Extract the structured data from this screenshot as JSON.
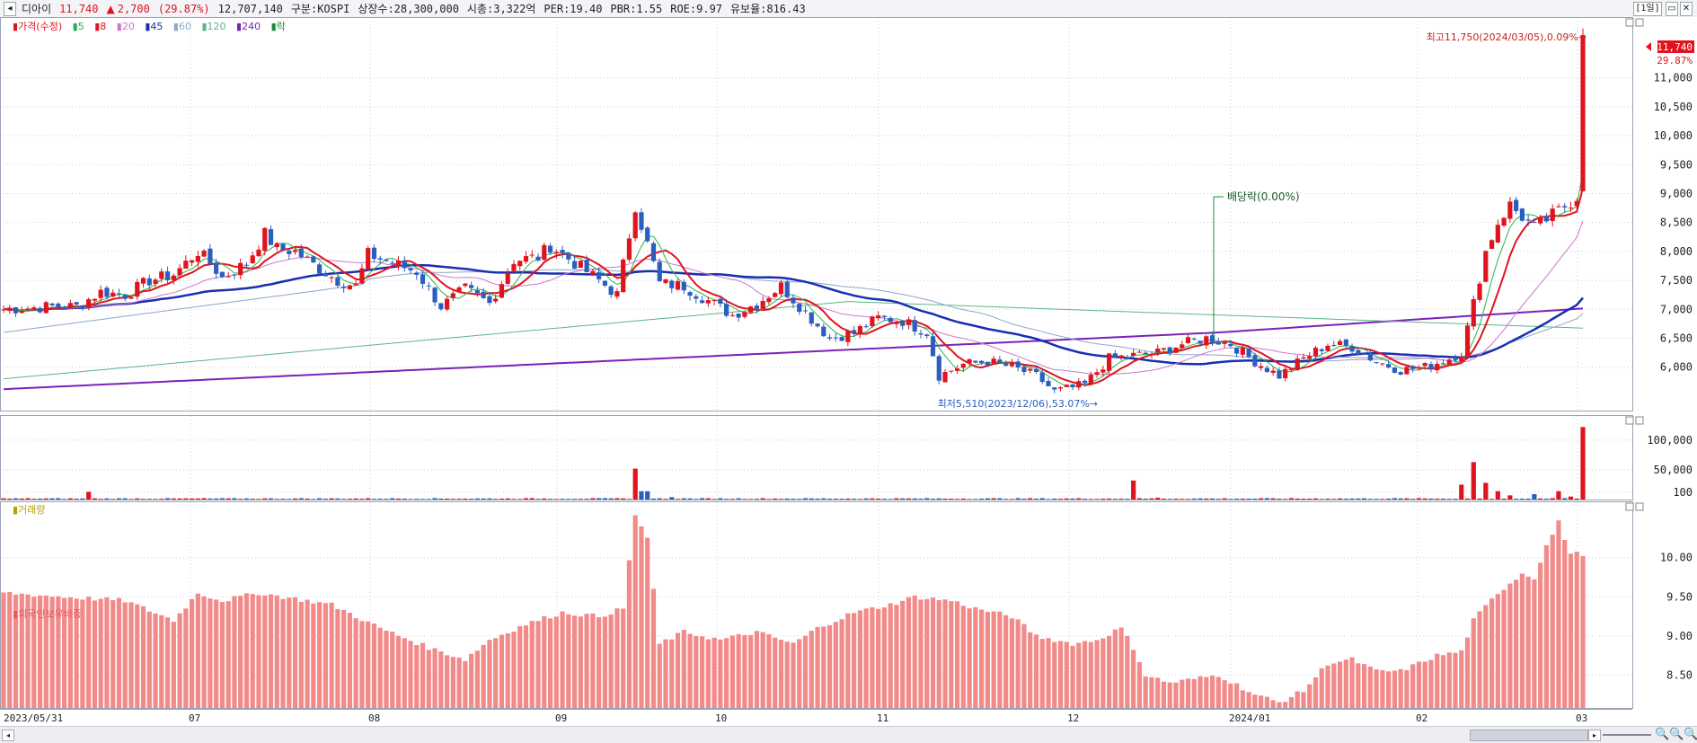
{
  "header": {
    "name": "디아이",
    "price": "11,740",
    "change_arrow": "▲",
    "change": "2,700",
    "change_pct": "(29.87%)",
    "volume": "12,707,140",
    "market": "구분:KOSPI",
    "listed": "상장수:28,300,000",
    "mcap": "시총:3,322억",
    "per": "PER:19.40",
    "pbr": "PBR:1.55",
    "roe": "ROE:9.97",
    "reserve": "유보율:816.43",
    "period_button": "[1일]"
  },
  "legend_price": {
    "title": "가격(수정)",
    "ma5": "5",
    "ma8": "8",
    "ma20": "20",
    "ma45": "45",
    "ma60": "60",
    "ma120": "120",
    "ma240": "240",
    "exdiv": "락"
  },
  "legend_volume": {
    "title": "거래량"
  },
  "legend_foreign": {
    "title": "외국인보유비중"
  },
  "colors": {
    "up": "#e0141e",
    "down": "#2a5fc0",
    "ma5": "#27b34b",
    "ma8": "#e0141e",
    "ma20": "#cc77cc",
    "ma45": "#1a2fb0",
    "ma60": "#8aa8c8",
    "ma120": "#5bb585",
    "ma240": "#7a22b8",
    "foreign": "#f28a8a"
  },
  "annotations": {
    "high": "최고11,750(2024/03/05),0.09%→",
    "low": "최저5,510(2023/12/06),53.07%→",
    "dividend": "배당락(0.00%)",
    "last_price": "11,740",
    "last_pct": "29.87%"
  },
  "chart_data": [
    {
      "type": "candlestick",
      "title": "가격(수정)",
      "x_labels": [
        "2023/05/31",
        "07",
        "08",
        "09",
        "10",
        "11",
        "12",
        "2024/01",
        "02",
        "03"
      ],
      "y_ticks": [
        6000,
        6500,
        7000,
        7500,
        8000,
        8500,
        9000,
        9500,
        10000,
        10500,
        11000
      ],
      "y_tick_labels": [
        "6,000",
        "6,500",
        "7,000",
        "7,500",
        "8,000",
        "8,500",
        "9,000",
        "9,500",
        "10,000",
        "10,500",
        "11,000"
      ],
      "ylim": [
        5250,
        12050
      ],
      "anchors": [
        [
          0,
          7000
        ],
        [
          8,
          7050
        ],
        [
          12,
          7050
        ],
        [
          16,
          7300
        ],
        [
          20,
          7250
        ],
        [
          24,
          7500
        ],
        [
          28,
          7600
        ],
        [
          32,
          8000
        ],
        [
          34,
          7800
        ],
        [
          36,
          7550
        ],
        [
          40,
          7800
        ],
        [
          43,
          8300
        ],
        [
          45,
          8050
        ],
        [
          48,
          8000
        ],
        [
          52,
          7700
        ],
        [
          55,
          7500
        ],
        [
          58,
          7400
        ],
        [
          60,
          7950
        ],
        [
          64,
          7800
        ],
        [
          68,
          7650
        ],
        [
          72,
          7050
        ],
        [
          76,
          7350
        ],
        [
          80,
          7100
        ],
        [
          84,
          7850
        ],
        [
          88,
          7900
        ],
        [
          90,
          8100
        ],
        [
          94,
          7800
        ],
        [
          98,
          7500
        ],
        [
          101,
          7250
        ],
        [
          104,
          8800
        ],
        [
          108,
          7450
        ],
        [
          112,
          7400
        ],
        [
          116,
          7150
        ],
        [
          120,
          6900
        ],
        [
          124,
          7100
        ],
        [
          128,
          7400
        ],
        [
          132,
          6950
        ],
        [
          136,
          6500
        ],
        [
          140,
          6600
        ],
        [
          144,
          6850
        ],
        [
          148,
          6800
        ],
        [
          152,
          6600
        ],
        [
          154,
          5850
        ],
        [
          158,
          6050
        ],
        [
          162,
          6100
        ],
        [
          166,
          6000
        ],
        [
          170,
          5850
        ],
        [
          173,
          5580
        ],
        [
          176,
          5650
        ],
        [
          178,
          5700
        ],
        [
          182,
          6150
        ],
        [
          186,
          6200
        ],
        [
          190,
          6250
        ],
        [
          194,
          6400
        ],
        [
          198,
          6500
        ],
        [
          202,
          6400
        ],
        [
          206,
          6100
        ],
        [
          210,
          5850
        ],
        [
          214,
          6150
        ],
        [
          218,
          6400
        ],
        [
          222,
          6350
        ],
        [
          226,
          6100
        ],
        [
          230,
          5950
        ],
        [
          234,
          6000
        ],
        [
          238,
          6150
        ],
        [
          240,
          6250
        ],
        [
          242,
          7100
        ],
        [
          244,
          8000
        ],
        [
          246,
          8500
        ],
        [
          248,
          8800
        ],
        [
          252,
          8400
        ],
        [
          256,
          8700
        ],
        [
          259,
          8950
        ],
        [
          260,
          11740
        ]
      ],
      "annotations": [
        "최고11,750(2024/03/05),0.09%",
        "최저5,510(2023/12/06),53.07%",
        "배당락(0.00%)"
      ]
    },
    {
      "type": "bar",
      "title": "거래량",
      "y_tick_labels": [
        "100,000",
        "50,000",
        "100"
      ],
      "y_ticks": [
        100000,
        50000,
        100
      ],
      "ylim": [
        0,
        130000
      ],
      "spikes": [
        [
          14,
          13000
        ],
        [
          104,
          52000
        ],
        [
          105,
          14000
        ],
        [
          106,
          14000
        ],
        [
          110,
          4000
        ],
        [
          186,
          32000
        ],
        [
          190,
          3000
        ],
        [
          240,
          25000
        ],
        [
          242,
          63000
        ],
        [
          244,
          28000
        ],
        [
          246,
          14000
        ],
        [
          248,
          7000
        ],
        [
          252,
          9000
        ],
        [
          256,
          14000
        ],
        [
          258,
          5000
        ],
        [
          260,
          122000
        ]
      ],
      "base": 1500
    },
    {
      "type": "bar",
      "title": "외국인보유비중",
      "y_tick_labels": [
        "10.00",
        "9.50",
        "9.00",
        "8.50"
      ],
      "y_ticks": [
        10.0,
        9.5,
        9.0,
        8.5
      ],
      "ylim": [
        8.08,
        10.72
      ],
      "anchors": [
        [
          0,
          9.55
        ],
        [
          10,
          9.5
        ],
        [
          20,
          9.45
        ],
        [
          28,
          9.2
        ],
        [
          32,
          9.55
        ],
        [
          36,
          9.45
        ],
        [
          42,
          9.55
        ],
        [
          46,
          9.5
        ],
        [
          54,
          9.4
        ],
        [
          58,
          9.25
        ],
        [
          62,
          9.1
        ],
        [
          70,
          8.85
        ],
        [
          76,
          8.7
        ],
        [
          80,
          8.95
        ],
        [
          86,
          9.15
        ],
        [
          92,
          9.3
        ],
        [
          98,
          9.25
        ],
        [
          102,
          9.35
        ],
        [
          104,
          10.55
        ],
        [
          106,
          10.25
        ],
        [
          108,
          8.9
        ],
        [
          112,
          9.05
        ],
        [
          118,
          8.95
        ],
        [
          124,
          9.05
        ],
        [
          130,
          8.9
        ],
        [
          134,
          9.1
        ],
        [
          140,
          9.3
        ],
        [
          146,
          9.4
        ],
        [
          150,
          9.5
        ],
        [
          156,
          9.45
        ],
        [
          160,
          9.35
        ],
        [
          166,
          9.25
        ],
        [
          170,
          9.0
        ],
        [
          176,
          8.9
        ],
        [
          180,
          8.95
        ],
        [
          184,
          9.1
        ],
        [
          186,
          8.85
        ],
        [
          188,
          8.5
        ],
        [
          192,
          8.4
        ],
        [
          200,
          8.5
        ],
        [
          206,
          8.25
        ],
        [
          210,
          8.15
        ],
        [
          214,
          8.3
        ],
        [
          218,
          8.65
        ],
        [
          222,
          8.7
        ],
        [
          226,
          8.55
        ],
        [
          230,
          8.55
        ],
        [
          236,
          8.75
        ],
        [
          240,
          8.8
        ],
        [
          242,
          9.2
        ],
        [
          246,
          9.55
        ],
        [
          250,
          9.8
        ],
        [
          252,
          9.75
        ],
        [
          254,
          10.15
        ],
        [
          256,
          10.45
        ],
        [
          258,
          10.05
        ],
        [
          260,
          10.05
        ]
      ]
    }
  ]
}
